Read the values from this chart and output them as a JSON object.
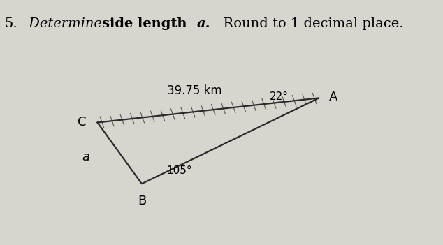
{
  "bg_color": "#d8d5cf",
  "triangle_color": "#2a2a2a",
  "line_width": 1.6,
  "C": [
    0.22,
    0.5
  ],
  "A": [
    0.72,
    0.6
  ],
  "B": [
    0.32,
    0.25
  ],
  "label_C": "C",
  "label_A": "A",
  "label_B": "B",
  "label_a": "a",
  "side_label": "39.75 km",
  "angle_A_label": "22°",
  "angle_B_label": "105°",
  "font_size_labels": 13,
  "font_size_side": 12,
  "font_size_angles": 11,
  "font_size_title": 14,
  "hatch_count": 22
}
